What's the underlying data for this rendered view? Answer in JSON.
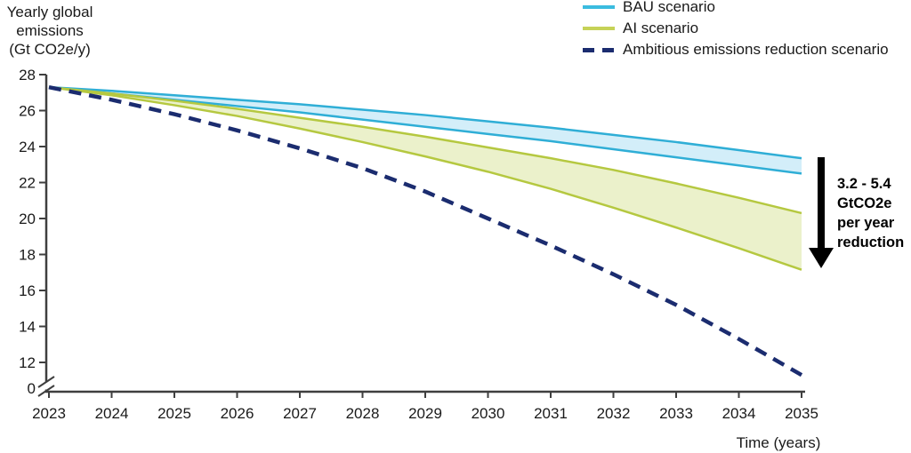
{
  "page": {
    "background": "#ffffff"
  },
  "y_axis": {
    "title": "Yearly global\nemissions\n(Gt CO2e/y)",
    "ticks": [
      28,
      26,
      24,
      22,
      20,
      18,
      16,
      14,
      12
    ],
    "zero_label": "0",
    "axis_break": true
  },
  "x_axis": {
    "title": "Time (years)",
    "ticks": [
      2023,
      2024,
      2025,
      2026,
      2027,
      2028,
      2029,
      2030,
      2031,
      2032,
      2033,
      2034,
      2035
    ]
  },
  "legend": {
    "items": [
      {
        "label": "BAU scenario",
        "color": "#3BBCDF",
        "style": "solid"
      },
      {
        "label": "AI scenario",
        "color": "#C6D257",
        "style": "solid"
      },
      {
        "label": "Ambitious emissions reduction scenario",
        "color": "#1B2C6F",
        "style": "dashed"
      }
    ]
  },
  "annotation": {
    "icon": "down-arrow-icon",
    "arrow_color": "#000000",
    "text": "3.2 - 5.4\nGtCO2e\nper year\nreduction"
  },
  "chart_data": {
    "type": "area",
    "title": "",
    "xlabel": "Time (years)",
    "ylabel": "Yearly global emissions (Gt CO2e/y)",
    "x": [
      2023,
      2024,
      2025,
      2026,
      2027,
      2028,
      2029,
      2030,
      2031,
      2032,
      2033,
      2034,
      2035
    ],
    "ylim": [
      0,
      28
    ],
    "y_axis_break_between": [
      0,
      12
    ],
    "grid": false,
    "legend_position": "top-right",
    "axis_color": "#3f3f3f",
    "text_color": "#1a1a1a",
    "bands": [
      {
        "id": "bau",
        "name": "BAU scenario",
        "color": "#2FAED6",
        "fill": "#D3EEF9",
        "upper": [
          27.3,
          27.1,
          26.85,
          26.6,
          26.35,
          26.05,
          25.75,
          25.4,
          25.05,
          24.65,
          24.25,
          23.8,
          23.35
        ],
        "lower": [
          27.3,
          26.95,
          26.6,
          26.25,
          25.9,
          25.5,
          25.1,
          24.7,
          24.3,
          23.85,
          23.4,
          22.95,
          22.5
        ]
      },
      {
        "id": "ai",
        "name": "AI scenario",
        "color": "#B5C840",
        "fill": "#EBF1CB",
        "upper": [
          27.3,
          26.95,
          26.55,
          26.1,
          25.6,
          25.1,
          24.55,
          23.95,
          23.35,
          22.7,
          21.95,
          21.15,
          20.3
        ],
        "lower": [
          27.3,
          26.85,
          26.3,
          25.7,
          25.0,
          24.25,
          23.45,
          22.6,
          21.65,
          20.6,
          19.5,
          18.35,
          17.15
        ]
      }
    ],
    "lines": [
      {
        "id": "ambitious",
        "name": "Ambitious emissions reduction scenario",
        "color": "#1B2C6F",
        "dash": true,
        "values": [
          27.3,
          26.6,
          25.8,
          24.9,
          23.9,
          22.8,
          21.5,
          20.0,
          18.5,
          16.9,
          15.2,
          13.3,
          11.3
        ]
      }
    ],
    "annotation_2035_reduction": "3.2 - 5.4 GtCO2e per year reduction"
  }
}
